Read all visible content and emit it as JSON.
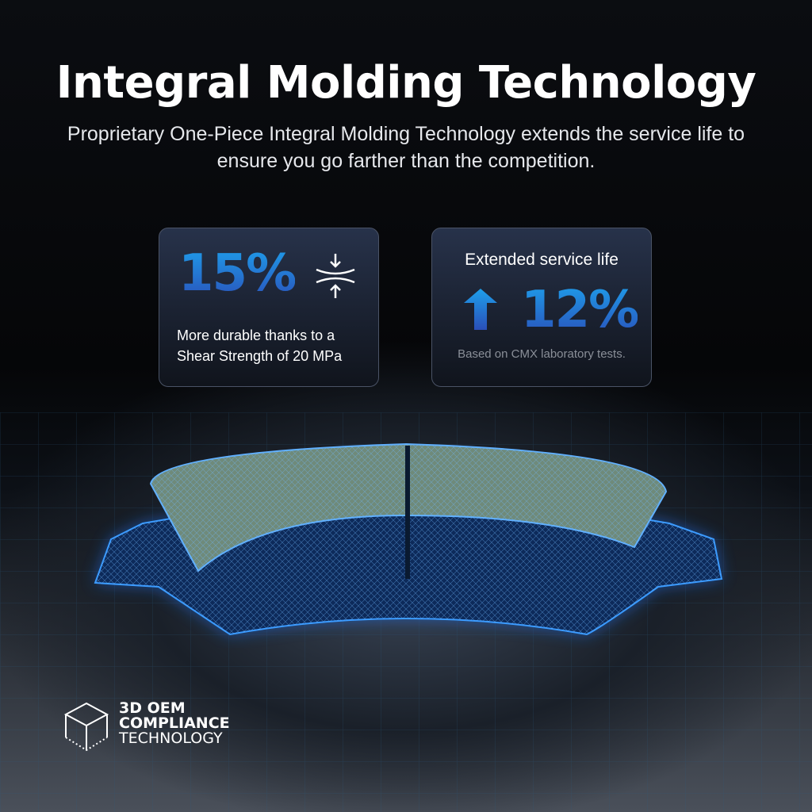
{
  "header": {
    "title": "Integral Molding Technology",
    "subtitle": "Proprietary One-Piece Integral Molding Technology extends the service life to ensure you go farther than the competition."
  },
  "cards": [
    {
      "value": "15%",
      "icon": "compression-arrows-icon",
      "text_line1": "More durable thanks to a",
      "text_line2": "Shear Strength of 20 MPa"
    },
    {
      "heading": "Extended service life",
      "icon": "arrow-up-icon",
      "value": "12%",
      "note": "Based on CMX laboratory tests."
    }
  ],
  "badge": {
    "icon": "cube-icon",
    "line1": "3D OEM",
    "line2": "COMPLIANCE",
    "line3": "TECHNOLOGY"
  },
  "colors": {
    "accent_blue": "#1e90e6",
    "background": "#050608"
  }
}
